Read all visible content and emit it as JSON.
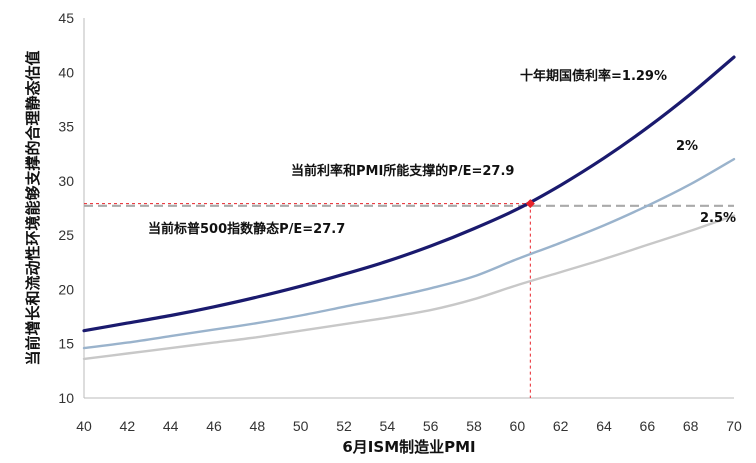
{
  "chart_data": {
    "type": "line",
    "xlabel": "6月ISM制造业PMI",
    "ylabel": "当前增长和流动性环境能够支撑的合理静态估值",
    "xlim": [
      40,
      70
    ],
    "ylim": [
      10,
      45
    ],
    "x_ticks": [
      40,
      42,
      44,
      46,
      48,
      50,
      52,
      54,
      56,
      58,
      60,
      62,
      64,
      66,
      68,
      70
    ],
    "y_ticks": [
      10,
      15,
      20,
      25,
      30,
      35,
      40,
      45
    ],
    "grid": false,
    "x": [
      40,
      42,
      44,
      46,
      48,
      50,
      52,
      54,
      56,
      58,
      60,
      62,
      64,
      66,
      68,
      70
    ],
    "series": [
      {
        "name": "十年期国债利率=1.29%",
        "color": "#1a1a6e",
        "values": [
          16.2,
          16.9,
          17.6,
          18.4,
          19.3,
          20.3,
          21.4,
          22.6,
          24.0,
          25.6,
          27.4,
          29.6,
          32.1,
          34.9,
          38.0,
          41.4
        ]
      },
      {
        "name": "2%",
        "color": "#9ab3cc",
        "values": [
          14.6,
          15.1,
          15.7,
          16.3,
          16.9,
          17.6,
          18.4,
          19.2,
          20.1,
          21.2,
          22.8,
          24.3,
          25.9,
          27.7,
          29.7,
          32.0
        ]
      },
      {
        "name": "2.5%",
        "color": "#c8c8c8",
        "values": [
          13.6,
          14.1,
          14.6,
          15.1,
          15.6,
          16.2,
          16.8,
          17.4,
          18.1,
          19.1,
          20.4,
          21.6,
          22.8,
          24.1,
          25.4,
          26.8
        ]
      }
    ],
    "reference": {
      "label": "当前标普500指数静态P/E=27.7",
      "y": 27.7,
      "color": "#aaaaaa"
    },
    "marker": {
      "label": "当前利率和PMI所能支撑的P/E=27.9",
      "x": 60.6,
      "y": 27.9,
      "color": "#e8232a"
    }
  }
}
